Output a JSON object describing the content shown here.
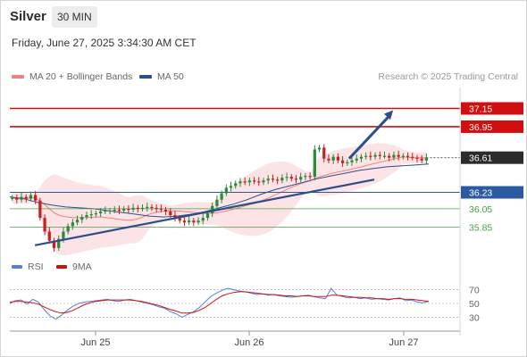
{
  "header": {
    "instrument": "Silver",
    "timeframe": "30 MIN"
  },
  "datetime": "Friday, June 27, 2025 3:34:30 AM CET",
  "legend": {
    "ma20": {
      "label": "MA 20 + Bollinger Bands",
      "color": "#f08080"
    },
    "ma50": {
      "label": "MA 50",
      "color": "#2c4f8c"
    }
  },
  "credit": "Research © 2025 Trading Central",
  "colors": {
    "up": "#2a8a3a",
    "down": "#c62020",
    "resistance": "#d01010",
    "pivot": "#2c5aa0",
    "support": "#4aa04a",
    "trend": "#2c4f8c",
    "band": "#fbd9dc"
  },
  "chart_data": {
    "type": "candlestick",
    "x_labels": [
      "Jun 25",
      "Jun 26",
      "Jun 27"
    ],
    "ylim": [
      35.55,
      37.38
    ],
    "levels": [
      {
        "value": 37.15,
        "label": "37.15",
        "role": "resistance"
      },
      {
        "value": 36.95,
        "label": "36.95",
        "role": "resistance"
      },
      {
        "value": 36.61,
        "label": "36.61",
        "role": "last"
      },
      {
        "value": 36.23,
        "label": "36.23",
        "role": "pivot"
      },
      {
        "value": 36.05,
        "label": "36.05",
        "role": "support"
      },
      {
        "value": 35.85,
        "label": "35.85",
        "role": "support"
      }
    ],
    "closes": [
      36.17,
      36.15,
      36.18,
      36.16,
      36.2,
      36.14,
      35.95,
      35.8,
      35.7,
      35.62,
      35.72,
      35.8,
      35.86,
      35.9,
      35.93,
      35.96,
      35.98,
      35.99,
      36.0,
      36.02,
      36.03,
      36.03,
      36.04,
      36.03,
      36.05,
      36.04,
      36.06,
      36.05,
      36.06,
      36.07,
      36.06,
      36.05,
      36.04,
      36.02,
      35.98,
      35.95,
      35.92,
      35.9,
      35.92,
      35.9,
      35.92,
      35.95,
      36.0,
      36.08,
      36.15,
      36.22,
      36.28,
      36.3,
      36.33,
      36.35,
      36.34,
      36.36,
      36.35,
      36.34,
      36.36,
      36.38,
      36.37,
      36.36,
      36.39,
      36.4,
      36.38,
      36.37,
      36.4,
      36.41,
      36.4,
      36.7,
      36.72,
      36.6,
      36.58,
      36.62,
      36.58,
      36.55,
      36.56,
      36.58,
      36.6,
      36.62,
      36.63,
      36.62,
      36.64,
      36.63,
      36.63,
      36.61,
      36.64,
      36.62,
      36.63,
      36.62,
      36.61,
      36.6,
      36.58,
      36.61
    ],
    "ma50": [
      36.18,
      36.16,
      36.12,
      36.09,
      36.07,
      36.06,
      36.05,
      36.03,
      36.01,
      35.99,
      35.97,
      35.96,
      35.97,
      35.99,
      36.02,
      36.06,
      36.1,
      36.15,
      36.21,
      36.26,
      36.3,
      36.34,
      36.38,
      36.41,
      36.44,
      36.47,
      36.49,
      36.51,
      36.52,
      36.53,
      36.54
    ],
    "trendlines": [
      {
        "from": [
          0.06,
          35.65
        ],
        "to": [
          0.87,
          36.37
        ]
      },
      {
        "from": [
          0.81,
          36.6
        ],
        "to": [
          0.915,
          37.13
        ]
      }
    ],
    "rsi": {
      "legend": [
        {
          "label": "RSI",
          "color": "#5b7fd6"
        },
        {
          "label": "9MA",
          "color": "#d01010"
        }
      ],
      "ticks": [
        70,
        50,
        30
      ],
      "ylim": [
        15,
        85
      ],
      "values": [
        50,
        54,
        55,
        49,
        56,
        52,
        41,
        32,
        27,
        33,
        40,
        46,
        50,
        52,
        53,
        54,
        55,
        56,
        54,
        53,
        55,
        56,
        54,
        52,
        50,
        48,
        45,
        43,
        38,
        35,
        30,
        34,
        38,
        44,
        52,
        60,
        65,
        69,
        72,
        70,
        68,
        67,
        65,
        63,
        64,
        62,
        63,
        61,
        60,
        59,
        60,
        61,
        62,
        60,
        58,
        57,
        72,
        62,
        60,
        58,
        59,
        57,
        58,
        56,
        57,
        56,
        55,
        57,
        58,
        54,
        55,
        52,
        51,
        53
      ],
      "ma": [
        52,
        53,
        53,
        52,
        51,
        49,
        45,
        41,
        38,
        36,
        37,
        40,
        44,
        48,
        51,
        53,
        54,
        55,
        55,
        55,
        55,
        55,
        54,
        53,
        51,
        49,
        47,
        44,
        41,
        39,
        36,
        36,
        37,
        40,
        44,
        50,
        56,
        61,
        64,
        66,
        67,
        67,
        66,
        65,
        64,
        63,
        63,
        62,
        61,
        61,
        60,
        61,
        61,
        60,
        60,
        60,
        62,
        62,
        61,
        60,
        59,
        59,
        58,
        58,
        57,
        57,
        56,
        57,
        57,
        56,
        56,
        55,
        54,
        53
      ]
    }
  }
}
